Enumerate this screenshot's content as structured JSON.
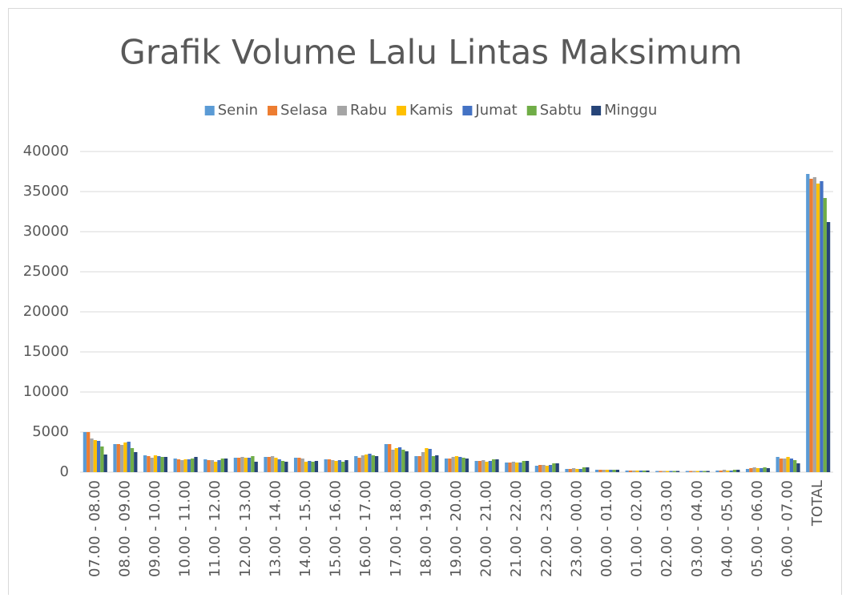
{
  "chart_data": {
    "type": "bar",
    "title": "Grafik Volume Lalu Lintas Maksimum",
    "categories": [
      "07.00 - 08.00",
      "08.00 - 09.00",
      "09.00 - 10.00",
      "10.00 - 11.00",
      "11.00 - 12.00",
      "12.00 - 13.00",
      "13.00 - 14.00",
      "14.00 - 15.00",
      "15.00 - 16.00",
      "16.00 - 17.00",
      "17.00 - 18.00",
      "18.00 - 19.00",
      "19.00 - 20.00",
      "20.00 - 21.00",
      "21.00 - 22.00",
      "22.00 - 23.00",
      "23.00 - 00.00",
      "00.00 - 01.00",
      "01.00 - 02.00",
      "02.00 - 03.00",
      "03.00 - 04.00",
      "04.00 - 05.00",
      "05.00 - 06.00",
      "06.00 - 07.00",
      "TOTAL"
    ],
    "series": [
      {
        "name": "Senin",
        "color": "#5b9bd5",
        "values": [
          5000,
          3500,
          2100,
          1700,
          1600,
          1800,
          1900,
          1800,
          1600,
          2000,
          3500,
          2000,
          1700,
          1400,
          1200,
          800,
          400,
          300,
          200,
          150,
          150,
          200,
          400,
          1900,
          37200
        ]
      },
      {
        "name": "Selasa",
        "color": "#ed7d31",
        "values": [
          5000,
          3500,
          2000,
          1600,
          1500,
          1800,
          1900,
          1800,
          1600,
          1800,
          3500,
          2000,
          1700,
          1400,
          1200,
          900,
          400,
          300,
          200,
          150,
          150,
          200,
          500,
          1700,
          36600
        ]
      },
      {
        "name": "Rabu",
        "color": "#a5a5a5",
        "values": [
          4200,
          3400,
          1800,
          1500,
          1500,
          1900,
          2000,
          1700,
          1500,
          2100,
          2800,
          2500,
          1900,
          1500,
          1300,
          900,
          500,
          300,
          200,
          150,
          150,
          300,
          600,
          1700,
          36800
        ]
      },
      {
        "name": "Kamis",
        "color": "#ffc000",
        "values": [
          4000,
          3700,
          2100,
          1600,
          1300,
          1800,
          1800,
          1300,
          1400,
          2200,
          3000,
          3000,
          2000,
          1300,
          1200,
          800,
          400,
          300,
          200,
          150,
          150,
          200,
          500,
          1900,
          36000
        ]
      },
      {
        "name": "Jumat",
        "color": "#4472c4",
        "values": [
          3900,
          3800,
          2000,
          1600,
          1500,
          1800,
          1600,
          1400,
          1500,
          2300,
          3100,
          2900,
          1900,
          1400,
          1200,
          900,
          400,
          300,
          200,
          150,
          150,
          200,
          500,
          1700,
          36300
        ]
      },
      {
        "name": "Sabtu",
        "color": "#70ad47",
        "values": [
          3200,
          3000,
          1900,
          1700,
          1700,
          2000,
          1400,
          1300,
          1300,
          2100,
          2800,
          2000,
          1800,
          1600,
          1400,
          1100,
          600,
          300,
          200,
          150,
          150,
          300,
          600,
          1500,
          34200
        ]
      },
      {
        "name": "Minggu",
        "color": "#264478",
        "values": [
          2200,
          2500,
          1900,
          1900,
          1700,
          1300,
          1300,
          1400,
          1500,
          2000,
          2600,
          2100,
          1700,
          1600,
          1400,
          1100,
          600,
          300,
          200,
          150,
          150,
          300,
          500,
          1100,
          31200
        ]
      }
    ],
    "ylim": [
      0,
      40000
    ],
    "yticks": [
      0,
      5000,
      10000,
      15000,
      20000,
      25000,
      30000,
      35000,
      40000
    ],
    "grid": true,
    "legend": "top"
  }
}
